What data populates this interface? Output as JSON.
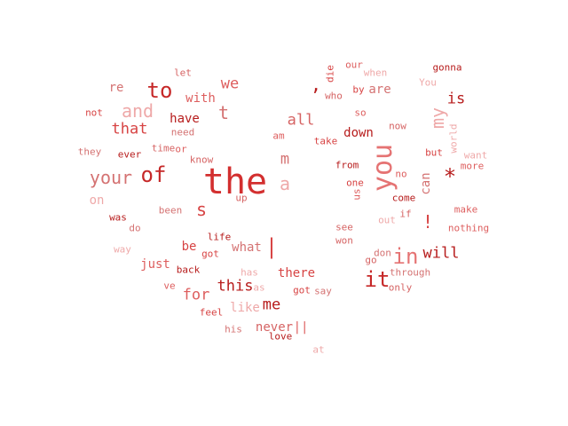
{
  "palette": [
    "#c62828",
    "#d84343",
    "#b71c1c",
    "#e57373",
    "#d32f2f",
    "#c94b4b"
  ],
  "words": [
    {
      "text": "let",
      "weight": 1
    },
    {
      "text": "our",
      "weight": 1
    },
    {
      "text": "gonna",
      "weight": 1
    },
    {
      "text": "when",
      "weight": 1
    },
    {
      "text": "die",
      "weight": 1
    },
    {
      "text": "re",
      "weight": 2
    },
    {
      "text": "to",
      "weight": 5
    },
    {
      "text": "we",
      "weight": 3
    },
    {
      "text": ",",
      "weight": 4
    },
    {
      "text": "You",
      "weight": 1
    },
    {
      "text": "by",
      "weight": 1
    },
    {
      "text": "are",
      "weight": 2
    },
    {
      "text": "who",
      "weight": 1
    },
    {
      "text": "with",
      "weight": 2
    },
    {
      "text": "is",
      "weight": 3
    },
    {
      "text": "and",
      "weight": 4
    },
    {
      "text": "not",
      "weight": 1
    },
    {
      "text": "t",
      "weight": 4
    },
    {
      "text": "all",
      "weight": 3
    },
    {
      "text": "so",
      "weight": 1
    },
    {
      "text": "have",
      "weight": 2
    },
    {
      "text": "my",
      "weight": 4
    },
    {
      "text": "that",
      "weight": 3
    },
    {
      "text": "need",
      "weight": 1
    },
    {
      "text": "now",
      "weight": 1
    },
    {
      "text": "am",
      "weight": 1
    },
    {
      "text": "down",
      "weight": 2
    },
    {
      "text": "world",
      "weight": 1
    },
    {
      "text": "take",
      "weight": 1
    },
    {
      "text": "they",
      "weight": 1
    },
    {
      "text": "time",
      "weight": 1
    },
    {
      "text": "or",
      "weight": 1
    },
    {
      "text": "ever",
      "weight": 1
    },
    {
      "text": "want",
      "weight": 1
    },
    {
      "text": "but",
      "weight": 1
    },
    {
      "text": "m",
      "weight": 3
    },
    {
      "text": "know",
      "weight": 1
    },
    {
      "text": "more",
      "weight": 1
    },
    {
      "text": "from",
      "weight": 1
    },
    {
      "text": "you",
      "weight": 6
    },
    {
      "text": "the",
      "weight": 8
    },
    {
      "text": "your",
      "weight": 4
    },
    {
      "text": "of",
      "weight": 5
    },
    {
      "text": "no",
      "weight": 1
    },
    {
      "text": "*",
      "weight": 5
    },
    {
      "text": "a",
      "weight": 4
    },
    {
      "text": "one",
      "weight": 1
    },
    {
      "text": "can",
      "weight": 2
    },
    {
      "text": "up",
      "weight": 1
    },
    {
      "text": "us",
      "weight": 1
    },
    {
      "text": "come",
      "weight": 1
    },
    {
      "text": "on",
      "weight": 2
    },
    {
      "text": "s",
      "weight": 4
    },
    {
      "text": "been",
      "weight": 1
    },
    {
      "text": "if",
      "weight": 1
    },
    {
      "text": "make",
      "weight": 1
    },
    {
      "text": "was",
      "weight": 1
    },
    {
      "text": "out",
      "weight": 1
    },
    {
      "text": "!",
      "weight": 4
    },
    {
      "text": "do",
      "weight": 1
    },
    {
      "text": "see",
      "weight": 1
    },
    {
      "text": "nothing",
      "weight": 1
    },
    {
      "text": "life",
      "weight": 1
    },
    {
      "text": "way",
      "weight": 1
    },
    {
      "text": "be",
      "weight": 2
    },
    {
      "text": "what",
      "weight": 2
    },
    {
      "text": "won",
      "weight": 1
    },
    {
      "text": "|",
      "weight": 5
    },
    {
      "text": "will",
      "weight": 3
    },
    {
      "text": "in",
      "weight": 5
    },
    {
      "text": "got",
      "weight": 1
    },
    {
      "text": "don",
      "weight": 1
    },
    {
      "text": "go",
      "weight": 1
    },
    {
      "text": "just",
      "weight": 2
    },
    {
      "text": "back",
      "weight": 1
    },
    {
      "text": "has",
      "weight": 1
    },
    {
      "text": "there",
      "weight": 2
    },
    {
      "text": "through",
      "weight": 1
    },
    {
      "text": "it",
      "weight": 5
    },
    {
      "text": "ve",
      "weight": 1
    },
    {
      "text": "this",
      "weight": 3
    },
    {
      "text": "as",
      "weight": 1
    },
    {
      "text": "got",
      "weight": 1
    },
    {
      "text": "say",
      "weight": 1
    },
    {
      "text": "only",
      "weight": 1
    },
    {
      "text": "for",
      "weight": 3
    },
    {
      "text": "me",
      "weight": 3
    },
    {
      "text": "like",
      "weight": 2
    },
    {
      "text": "feel",
      "weight": 1
    },
    {
      "text": "his",
      "weight": 1
    },
    {
      "text": "never",
      "weight": 2
    },
    {
      "text": "||",
      "weight": 2
    },
    {
      "text": "love",
      "weight": 1
    },
    {
      "text": "at",
      "weight": 1
    }
  ]
}
